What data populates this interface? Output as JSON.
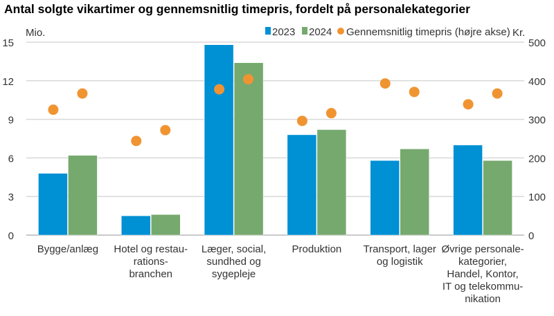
{
  "chart_data": {
    "type": "bar",
    "title": "Antal solgte vikartimer og gennemsnitlig timepris, fordelt på personalekategorier",
    "ylabel": "Mio.",
    "y2label": "Kr.",
    "ylim": [
      0,
      15
    ],
    "y2lim": [
      0,
      500
    ],
    "yticks": [
      "0",
      "3",
      "6",
      "9",
      "12",
      "15"
    ],
    "y2ticks": [
      "0",
      "100",
      "200",
      "300",
      "400",
      "500"
    ],
    "grid": true,
    "legend_position": "top-right",
    "categories": [
      [
        "Bygge/anlæg"
      ],
      [
        "Hotel og restau-",
        "rations-",
        "branchen"
      ],
      [
        "Læger, social,",
        "sundhed og",
        "sygepleje"
      ],
      [
        "Produktion"
      ],
      [
        "Transport, lager",
        "og logistik"
      ],
      [
        "Øvrige personale-",
        "kategorier,",
        "Handel, Kontor,",
        "IT og telekommu-",
        "nikation"
      ]
    ],
    "series": [
      {
        "name": "2023",
        "type": "bar",
        "axis": "left",
        "color": "#0090d4",
        "values": [
          4.8,
          1.5,
          14.8,
          7.8,
          5.8,
          7.0
        ]
      },
      {
        "name": "2024",
        "type": "bar",
        "axis": "left",
        "color": "#76a96e",
        "values": [
          6.2,
          1.6,
          13.4,
          8.2,
          6.7,
          5.8
        ]
      },
      {
        "name": "Gennemsnitlig timepris (højre akse)",
        "type": "scatter",
        "axis": "right",
        "color": "#f09432",
        "values_2023": [
          325,
          244,
          378,
          296,
          393,
          339
        ],
        "values_2024": [
          367,
          272,
          404,
          316,
          371,
          367
        ]
      }
    ]
  }
}
